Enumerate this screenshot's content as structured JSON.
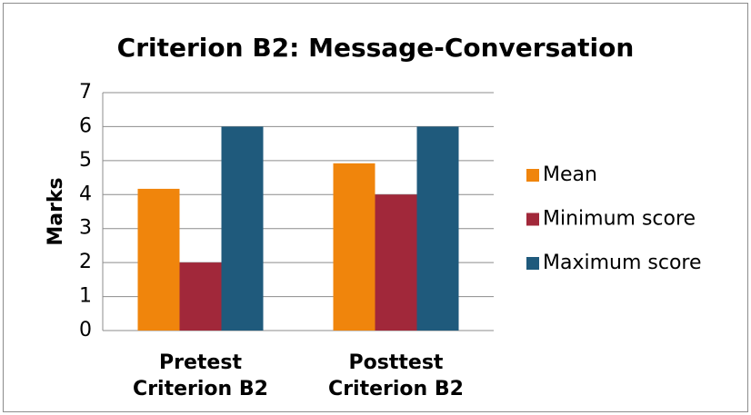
{
  "chart_data": {
    "type": "bar",
    "title": "Criterion B2: Message-Conversation",
    "y_label": "Marks",
    "categories": [
      [
        "Pretest",
        "Criterion  B2"
      ],
      [
        "Posttest",
        "Criterion B2"
      ]
    ],
    "series": [
      {
        "name": "Mean",
        "color": "#f0850c",
        "values": [
          4.17,
          4.92
        ]
      },
      {
        "name": "Minimum score",
        "color": "#a1283a",
        "values": [
          2,
          4
        ]
      },
      {
        "name": "Maximum score",
        "color": "#1f5a7c",
        "values": [
          6,
          6
        ]
      }
    ],
    "ylim": [
      0,
      7
    ],
    "yticks": [
      0,
      1,
      2,
      3,
      4,
      5,
      6,
      7
    ],
    "grid": true,
    "legend": "right"
  }
}
